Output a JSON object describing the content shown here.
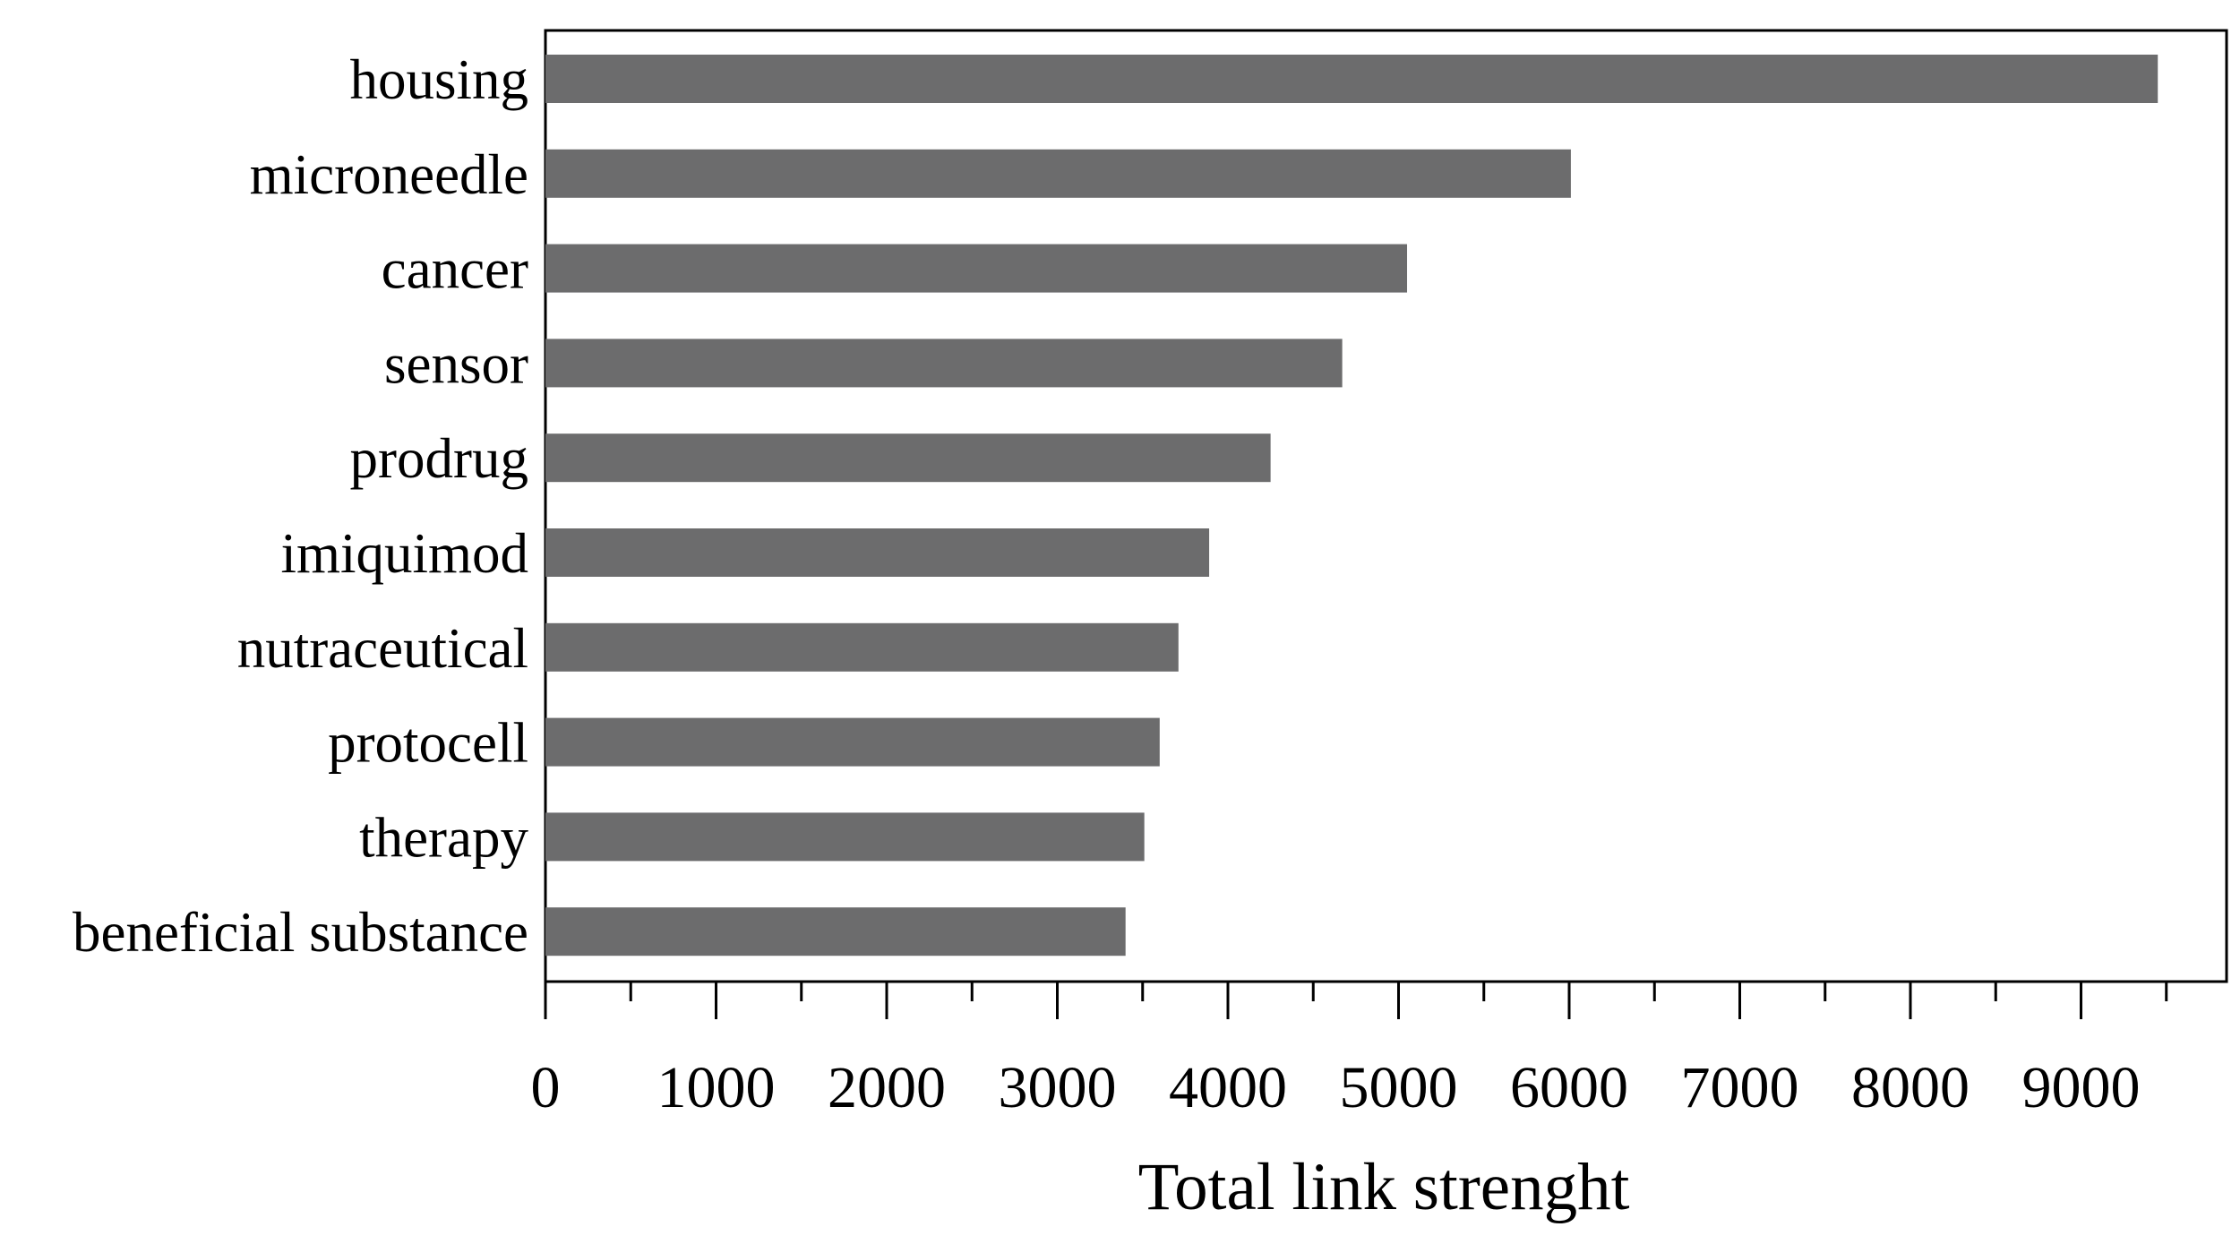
{
  "chart_data": {
    "type": "bar",
    "orientation": "horizontal",
    "categories": [
      "housing",
      "microneedle",
      "cancer",
      "sensor",
      "prodrug",
      "imiquimod",
      "nutraceutical",
      "protocell",
      "therapy",
      "beneficial substance"
    ],
    "values": [
      9450,
      6010,
      5050,
      4670,
      4250,
      3890,
      3710,
      3600,
      3510,
      3400
    ],
    "xlabel": "Total link strenght",
    "ylabel": "",
    "xlim": [
      0,
      9600
    ],
    "x_ticks": [
      0,
      1000,
      2000,
      3000,
      4000,
      5000,
      6000,
      7000,
      8000,
      9000
    ],
    "grid": false,
    "legend": "none",
    "bar_color": "#6c6c6d"
  }
}
